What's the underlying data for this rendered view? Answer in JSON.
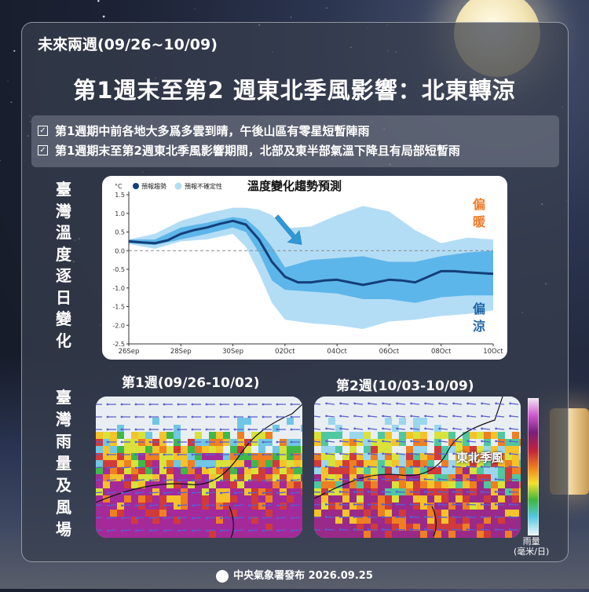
{
  "header": {
    "subtitle": "未來兩週(09/26~10/09)",
    "title": "第1週末至第2 週東北季風影響：北東轉涼"
  },
  "bullets": [
    "第1週期中前各地大多爲多雲到晴，午後山區有零星短暫陣雨",
    "第1週期末至第2週東北季風影響期間，北部及東半部氣溫下降且有局部短暫雨"
  ],
  "side_labels": {
    "temp": [
      "臺",
      "灣",
      "溫",
      "度",
      "逐",
      "日",
      "變",
      "化"
    ],
    "rain": [
      "臺",
      "灣",
      "雨",
      "量",
      "及",
      "風",
      "場"
    ]
  },
  "chart_data": {
    "type": "line",
    "title": "溫度變化趨勢預測",
    "unit_label": "°C",
    "legend": [
      "預報趨勢",
      "預報不確定性"
    ],
    "x_tick_labels": [
      "26Sep",
      "28Sep",
      "30Sep",
      "02Oct",
      "04Oct",
      "06Oct",
      "08Oct",
      "10Oct"
    ],
    "x_tick_days": [
      0,
      2,
      4,
      6,
      8,
      10,
      12,
      14
    ],
    "ylim": [
      -2.5,
      1.5
    ],
    "y_ticks": [
      "1.5",
      "1.0",
      "0.5",
      "0.0",
      "-0.5",
      "-1.0",
      "-1.5",
      "-2.0",
      "-2.5"
    ],
    "series": [
      {
        "name": "預報趨勢",
        "x": [
          0,
          0.5,
          1,
          1.5,
          2,
          2.5,
          3,
          3.5,
          4,
          4.5,
          5,
          5.5,
          6,
          6.5,
          7,
          7.5,
          8,
          8.5,
          9,
          9.5,
          10,
          10.5,
          11,
          11.5,
          12,
          12.5,
          13,
          13.5,
          14
        ],
        "y": [
          0.25,
          0.22,
          0.2,
          0.28,
          0.45,
          0.55,
          0.62,
          0.72,
          0.8,
          0.7,
          0.3,
          -0.3,
          -0.7,
          -0.85,
          -0.85,
          -0.8,
          -0.78,
          -0.85,
          -0.92,
          -0.85,
          -0.78,
          -0.8,
          -0.85,
          -0.7,
          -0.55,
          -0.55,
          -0.58,
          -0.6,
          -0.62
        ]
      },
      {
        "name": "預報不確定性-inner",
        "x": [
          0,
          1,
          2,
          3,
          4,
          4.5,
          5,
          5.5,
          6,
          7,
          8,
          9,
          10,
          11,
          12,
          13,
          14
        ],
        "upper": [
          0.3,
          0.3,
          0.62,
          0.75,
          0.9,
          0.85,
          0.55,
          0.1,
          -0.45,
          -0.25,
          -0.2,
          -0.15,
          -0.3,
          -0.3,
          -0.15,
          -0.05,
          0.0
        ],
        "lower": [
          0.2,
          0.15,
          0.3,
          0.45,
          0.62,
          0.5,
          -0.05,
          -0.8,
          -1.05,
          -1.1,
          -1.15,
          -1.3,
          -1.3,
          -1.4,
          -1.25,
          -1.2,
          -1.2
        ]
      },
      {
        "name": "預報不確定性-outer",
        "x": [
          0,
          1,
          2,
          3,
          4,
          4.5,
          5,
          5.5,
          6,
          7,
          8,
          9,
          10,
          11,
          12,
          13,
          14
        ],
        "upper": [
          0.3,
          0.45,
          0.8,
          1.0,
          1.15,
          1.15,
          1.1,
          0.95,
          0.6,
          0.65,
          0.95,
          1.2,
          1.05,
          0.55,
          0.2,
          0.35,
          0.3
        ],
        "lower": [
          0.18,
          0.05,
          0.25,
          0.3,
          0.45,
          0.1,
          -0.6,
          -1.4,
          -1.85,
          -1.95,
          -2.0,
          -2.1,
          -1.9,
          -1.85,
          -1.75,
          -1.7,
          -1.6
        ]
      }
    ],
    "annotations": {
      "warm": "偏暖",
      "cool": "偏涼"
    }
  },
  "maps": {
    "week1_label": "第1週(09/26-10/02)",
    "week2_label": "第2週(10/03-10/09)",
    "monsoon_label": "東北季風"
  },
  "rain_unit": [
    "雨量",
    "(毫米/日)"
  ],
  "footer": "中央氣象署發布 2026.09.25",
  "colors": {
    "line": "#143f7a",
    "inner_band": "#5db6e9",
    "outer_band": "#b3ddf5",
    "warm": "#f07b2a",
    "cool": "#1f63a8",
    "arrow": "#2e98d6"
  }
}
